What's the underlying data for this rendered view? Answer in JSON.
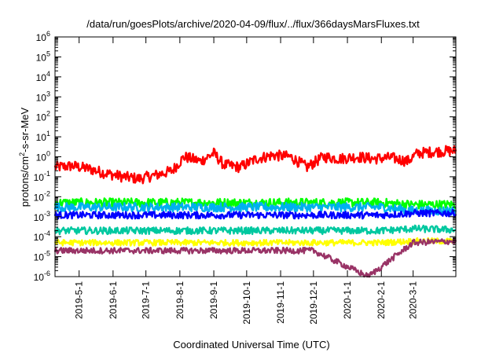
{
  "chart_data": {
    "type": "line",
    "title": "/data/run/goesPlots/archive/2020-04-09/flux/../flux/366daysMarsFluxes.txt",
    "xlabel": "Coordinated Universal Time (UTC)",
    "ylabel": {
      "pre": "protons/cm",
      "sup": "2",
      "post": "-s-sr-MeV"
    },
    "x_start": "2019-04-09",
    "x_end": "2020-04-09",
    "x_ticks": [
      "2019-5-1",
      "2019-6-1",
      "2019-7-1",
      "2019-8-1",
      "2019-9-1",
      "2019-10-1",
      "2019-11-1",
      "2019-12-1",
      "2020-1-1",
      "2020-2-1",
      "2020-3-1"
    ],
    "y_scale": "log",
    "ylim": [
      1e-06,
      1000000.0
    ],
    "y_ticks": [
      {
        "base": "10",
        "exp": "-6"
      },
      {
        "base": "10",
        "exp": "-5"
      },
      {
        "base": "10",
        "exp": "-4"
      },
      {
        "base": "10",
        "exp": "-3"
      },
      {
        "base": "10",
        "exp": "-2"
      },
      {
        "base": "10",
        "exp": "-1"
      },
      {
        "base": "10",
        "exp": "0"
      },
      {
        "base": "10",
        "exp": "1"
      },
      {
        "base": "10",
        "exp": "2"
      },
      {
        "base": "10",
        "exp": "3"
      },
      {
        "base": "10",
        "exp": "4"
      },
      {
        "base": "10",
        "exp": "5"
      },
      {
        "base": "10",
        "exp": "6"
      }
    ],
    "grid": false,
    "legend": "none",
    "series": [
      {
        "color": "#ff0000",
        "x": [
          "2019-04-09",
          "2019-04-25",
          "2019-05-10",
          "2019-05-25",
          "2019-06-10",
          "2019-06-25",
          "2019-07-10",
          "2019-07-25",
          "2019-08-05",
          "2019-08-20",
          "2019-09-01",
          "2019-09-10",
          "2019-09-25",
          "2019-10-10",
          "2019-10-25",
          "2019-11-10",
          "2019-11-25",
          "2019-12-10",
          "2019-12-25",
          "2020-01-10",
          "2020-01-25",
          "2020-02-10",
          "2020-02-25",
          "2020-03-05",
          "2020-03-20",
          "2020-04-09"
        ],
        "y": [
          0.3,
          0.35,
          0.25,
          0.15,
          0.1,
          0.08,
          0.12,
          0.2,
          1.0,
          0.6,
          1.5,
          0.4,
          0.3,
          0.8,
          1.2,
          1.0,
          0.3,
          1.0,
          0.8,
          1.0,
          0.8,
          0.9,
          0.6,
          1.5,
          1.8,
          2.0
        ]
      },
      {
        "color": "#00ff00",
        "x": [
          "2019-04-09",
          "2019-06-01",
          "2019-08-01",
          "2019-10-01",
          "2019-12-01",
          "2020-02-01",
          "2020-03-01",
          "2020-04-09"
        ],
        "y": [
          0.005,
          0.005,
          0.005,
          0.005,
          0.005,
          0.005,
          0.004,
          0.004
        ]
      },
      {
        "color": "#00b0f0",
        "x": [
          "2019-04-09",
          "2019-06-01",
          "2019-08-01",
          "2019-10-01",
          "2019-12-01",
          "2020-02-01",
          "2020-03-01",
          "2020-04-09"
        ],
        "y": [
          0.003,
          0.003,
          0.003,
          0.003,
          0.003,
          0.003,
          0.002,
          0.002
        ]
      },
      {
        "color": "#0000ff",
        "x": [
          "2019-04-09",
          "2019-06-01",
          "2019-08-01",
          "2019-10-01",
          "2019-12-01",
          "2020-02-01",
          "2020-03-01",
          "2020-04-09"
        ],
        "y": [
          0.0012,
          0.0012,
          0.0012,
          0.0012,
          0.0012,
          0.0012,
          0.0015,
          0.0015
        ]
      },
      {
        "color": "#00c8a0",
        "x": [
          "2019-04-09",
          "2019-06-01",
          "2019-08-01",
          "2019-10-01",
          "2019-12-01",
          "2020-02-01",
          "2020-03-01",
          "2020-04-09"
        ],
        "y": [
          0.0002,
          0.0002,
          0.0002,
          0.0002,
          0.0002,
          0.0002,
          0.00025,
          0.00022
        ]
      },
      {
        "color": "#ffff00",
        "x": [
          "2019-04-09",
          "2019-06-01",
          "2019-08-01",
          "2019-10-01",
          "2019-12-01",
          "2020-02-01",
          "2020-03-01",
          "2020-04-09"
        ],
        "y": [
          5e-05,
          5e-05,
          5e-05,
          5e-05,
          5e-05,
          5e-05,
          6e-05,
          6e-05
        ]
      },
      {
        "color": "#993366",
        "x": [
          "2019-04-09",
          "2019-06-01",
          "2019-08-01",
          "2019-10-01",
          "2019-12-01",
          "2020-01-20",
          "2020-03-01",
          "2020-04-09"
        ],
        "y": [
          2e-05,
          2e-05,
          2e-05,
          2e-05,
          2e-05,
          1e-06,
          5e-05,
          6e-05
        ]
      }
    ]
  }
}
